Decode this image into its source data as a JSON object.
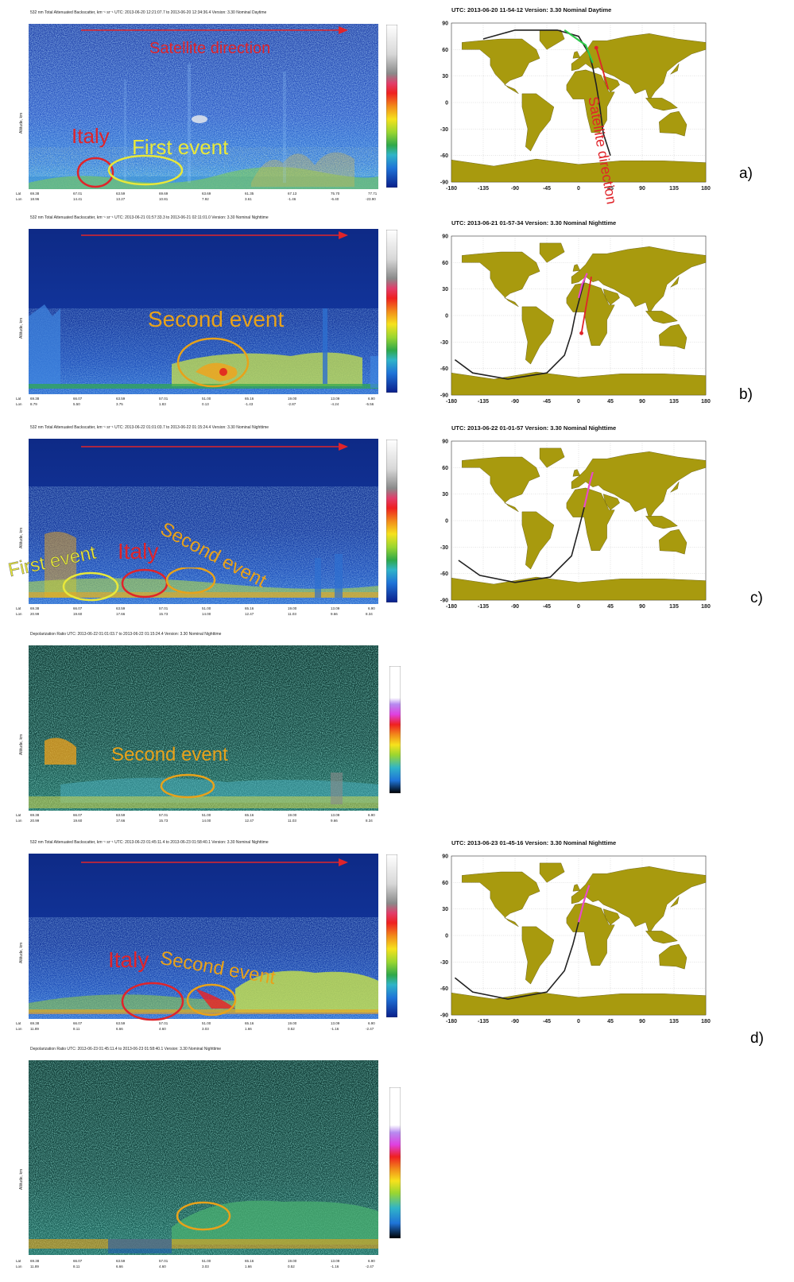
{
  "panel_labels": [
    "a)",
    "b)",
    "c)",
    "d)"
  ],
  "curtains": [
    {
      "title": "532 nm Total Attenuated Backscatter, km⁻¹ sr⁻¹   UTC: 2013-06-20 12:21:07.7  to  2013-06-20 12:34:36.4   Version: 3.30  Nominal  Daytime",
      "yaxis": "Altitude, km",
      "yticks": [
        "30",
        "25",
        "20",
        "15",
        "10",
        "5",
        "0"
      ],
      "lat_label": "Lat",
      "lon_label": "Lon",
      "lats": [
        "69.38",
        "67.01",
        "63.59",
        "69.69",
        "63.69",
        "61.35",
        "67.13",
        "75.70",
        "77.71"
      ],
      "lons": [
        "18.96",
        "14.41",
        "13.27",
        "10.81",
        "7.92",
        "3.61",
        "-1.46",
        "-6.40",
        "-23.90"
      ],
      "annotations": [
        "Satellite direction",
        "Italy",
        "First event"
      ]
    },
    {
      "title": "532 nm Total Attenuated Backscatter, km⁻¹ sr⁻¹   UTC: 2013-06-21 01:57:33.3  to  2013-06-21 02:11:01.0   Version: 3.30  Nominal  Nighttime",
      "yaxis": "Altitude, km",
      "yticks": [
        "30",
        "25",
        "20",
        "15",
        "10",
        "5",
        "0"
      ],
      "lat_label": "Lat",
      "lon_label": "Lon",
      "lats": [
        "69.38",
        "66.07",
        "63.59",
        "57.01",
        "51.00",
        "65.16",
        "19.00",
        "13.09",
        "6.90"
      ],
      "lons": [
        "8.79",
        "5.50",
        "3.75",
        "1.83",
        "0.13",
        "-1.43",
        "-2.87",
        "-4.24",
        "-5.56"
      ],
      "annotations": [
        "Second event"
      ]
    },
    {
      "title": "532 nm Total Attenuated Backscatter, km⁻¹ sr⁻¹   UTC: 2013-06-22 01:01:03.7  to  2013-06-22 01:15:24.4   Version: 3.30  Nominal  Nighttime",
      "yaxis": "Altitude, km",
      "yticks": [
        "30",
        "25",
        "20",
        "15",
        "10",
        "5",
        "0"
      ],
      "lat_label": "Lat",
      "lon_label": "Lon",
      "lats": [
        "69.38",
        "66.07",
        "63.59",
        "57.01",
        "51.00",
        "65.16",
        "19.00",
        "13.09",
        "6.90"
      ],
      "lons": [
        "20.99",
        "19.60",
        "17.66",
        "15.73",
        "14.00",
        "12.47",
        "11.03",
        "9.66",
        "8.34"
      ],
      "annotations": [
        "First event",
        "Italy",
        "Second event"
      ]
    },
    {
      "title": "Depolarization Ratio    UTC: 2013-06-22 01:01:03.7  to  2013-06-22 01:15:24.4   Version: 3.30  Nominal  Nighttime",
      "yaxis": "Altitude, km",
      "yticks": [
        "30",
        "25",
        "20",
        "15",
        "10",
        "5",
        "0"
      ],
      "lat_label": "Lat",
      "lon_label": "Lon",
      "lats": [
        "69.38",
        "66.07",
        "63.59",
        "57.01",
        "51.00",
        "65.16",
        "19.00",
        "13.09",
        "6.90"
      ],
      "lons": [
        "20.99",
        "19.60",
        "17.66",
        "15.73",
        "14.00",
        "12.47",
        "11.03",
        "9.66",
        "8.34"
      ],
      "annotations": [
        "Second event"
      ]
    },
    {
      "title": "532 nm Total Attenuated Backscatter, km⁻¹ sr⁻¹   UTC: 2013-06-23 01:45:11.4  to  2013-06-23 01:58:40.1   Version: 3.30  Nominal  Nighttime",
      "yaxis": "Altitude, km",
      "yticks": [
        "30",
        "25",
        "20",
        "15",
        "10",
        "5",
        "0"
      ],
      "lat_label": "Lat",
      "lon_label": "Lon",
      "lats": [
        "69.38",
        "66.07",
        "63.59",
        "57.01",
        "51.00",
        "65.16",
        "19.00",
        "13.09",
        "6.90"
      ],
      "lons": [
        "11.89",
        "8.11",
        "6.66",
        "4.60",
        "3.03",
        "1.66",
        "0.52",
        "-1.16",
        "-2.47"
      ],
      "annotations": [
        "Italy",
        "Second event"
      ]
    },
    {
      "title": "Depolarization Ratio    UTC: 2013-06-23 01:45:11.4  to  2013-06-23 01:58:40.1   Version: 3.30  Nominal  Nighttime",
      "yaxis": "Altitude, km",
      "yticks": [
        "30",
        "25",
        "20",
        "15",
        "10",
        "5",
        "0"
      ],
      "lat_label": "Lat",
      "lon_label": "Lon",
      "lats": [
        "69.38",
        "66.07",
        "63.59",
        "57.01",
        "51.00",
        "65.16",
        "19.00",
        "13.09",
        "6.90"
      ],
      "lons": [
        "11.89",
        "8.11",
        "6.66",
        "4.60",
        "3.03",
        "1.66",
        "0.52",
        "-1.16",
        "-2.47"
      ],
      "annotations": []
    }
  ],
  "maps": [
    {
      "title": "UTC: 2013-06-20   11-54-12     Version: 3.30   Nominal     Daytime",
      "annotations": [
        "Satellite direction"
      ]
    },
    {
      "title": "UTC: 2013-06-21   01-57-34     Version: 3.30   Nominal     Nighttime",
      "annotations": []
    },
    {
      "title": "UTC: 2013-06-22   01-01-57     Version: 3.30   Nominal     Nighttime",
      "annotations": []
    },
    {
      "title": "UTC: 2013-06-23   01-45-16     Version: 3.30   Nominal     Nighttime",
      "annotations": []
    }
  ],
  "map_axes": {
    "lat_ticks": [
      "90",
      "60",
      "30",
      "0",
      "-30",
      "-60",
      "-90"
    ],
    "lon_ticks": [
      "-180",
      "-135",
      "-90",
      "-45",
      "0",
      "45",
      "90",
      "135",
      "180"
    ]
  },
  "colors": {
    "annotation_red": "#e0242a",
    "annotation_yellow": "#e8e83a",
    "annotation_orange": "#e8a21a",
    "land": "#a89a0e",
    "track": "#222222",
    "track_highlight": "#e84cc8"
  }
}
